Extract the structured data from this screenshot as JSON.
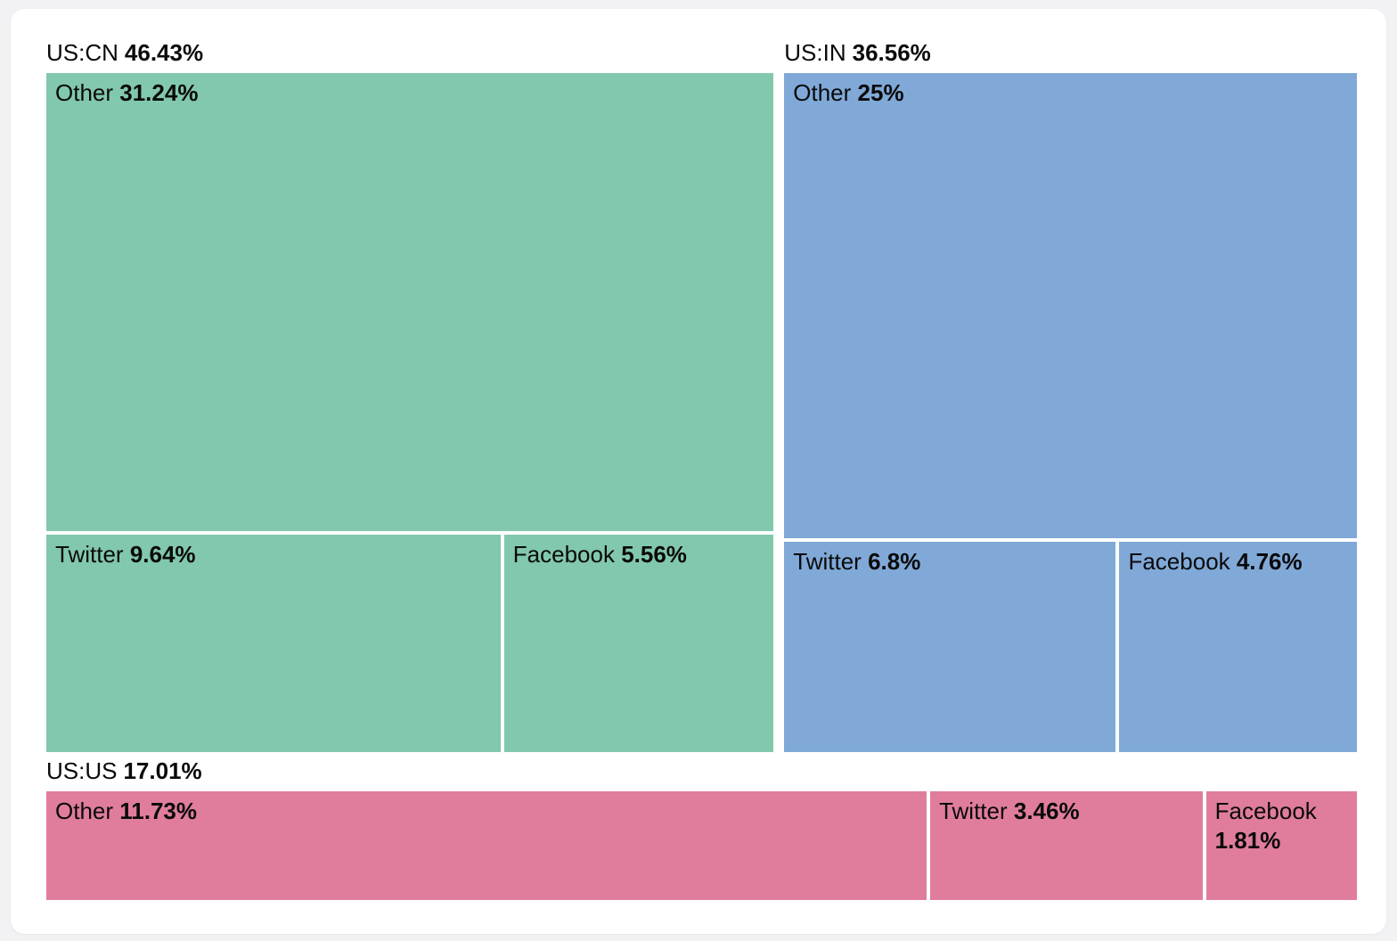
{
  "page": {
    "background_color": "#f2f2f4",
    "card_background_color": "#ffffff",
    "text_color": "#0a0a0a"
  },
  "chart_data": {
    "type": "treemap",
    "title": "",
    "unit": "%",
    "legend_position": "none",
    "layout": "top row: US:CN left + US:IN right; bottom full-width row: US:US; group label above each group; bold percentage labels",
    "groups": [
      {
        "name": "US:CN",
        "value": 46.43,
        "pct_label": "46.43%",
        "color": "#82c8ac",
        "subrow_value": 15.2,
        "children": [
          {
            "name": "Other",
            "value": 31.24,
            "pct_label": "31.24%"
          },
          {
            "name": "Twitter",
            "value": 9.64,
            "pct_label": "9.64%"
          },
          {
            "name": "Facebook",
            "value": 5.56,
            "pct_label": "5.56%"
          }
        ]
      },
      {
        "name": "US:IN",
        "value": 36.56,
        "pct_label": "36.56%",
        "color": "#80a9d8",
        "subrow_value": 11.56,
        "children": [
          {
            "name": "Other",
            "value": 25,
            "pct_label": "25%"
          },
          {
            "name": "Twitter",
            "value": 6.8,
            "pct_label": "6.8%"
          },
          {
            "name": "Facebook",
            "value": 4.76,
            "pct_label": "4.76%"
          }
        ]
      },
      {
        "name": "US:US",
        "value": 17.01,
        "pct_label": "17.01%",
        "color": "#e07d9c",
        "children": [
          {
            "name": "Other",
            "value": 11.73,
            "pct_label": "11.73%"
          },
          {
            "name": "Twitter",
            "value": 3.46,
            "pct_label": "3.46%"
          },
          {
            "name": "Facebook",
            "value": 1.81,
            "pct_label": "1.81%"
          }
        ]
      }
    ]
  }
}
